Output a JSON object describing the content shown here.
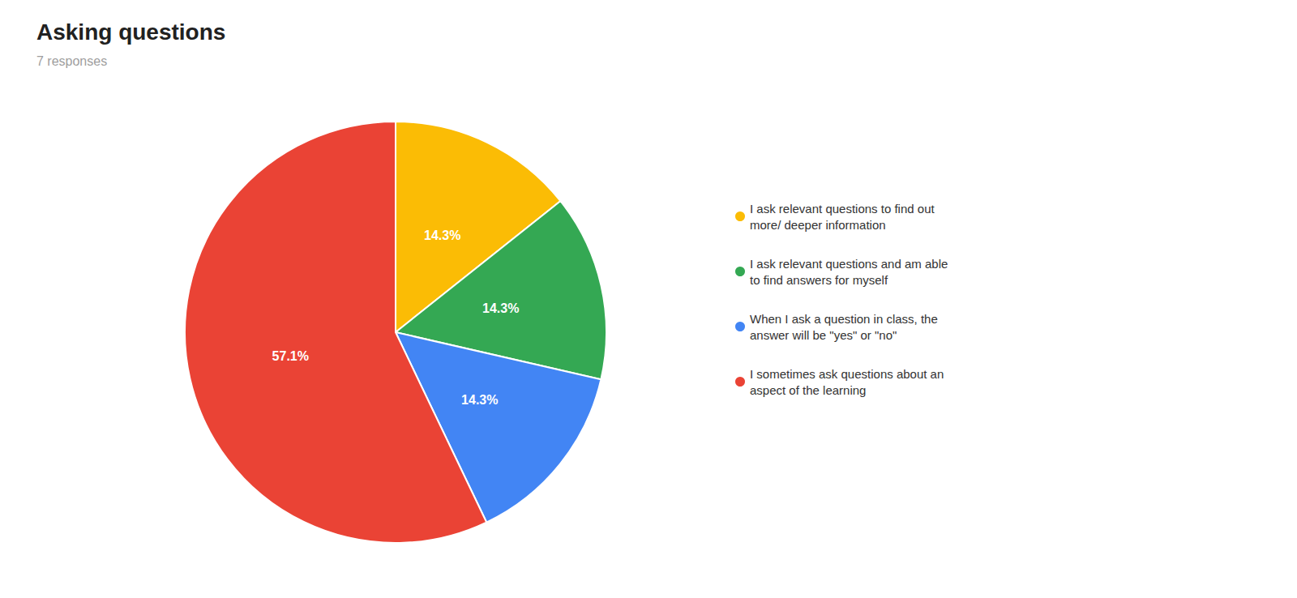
{
  "chart_data": {
    "type": "pie",
    "title": "Asking questions",
    "subtitle": "7 responses",
    "categories": [
      "I ask relevant questions to find out\nmore/ deeper information",
      "I ask relevant questions and am able\nto find answers for myself",
      "When I ask a question in class, the\nanswer will be \"yes\" or \"no\"",
      "I sometimes ask questions about an\naspect of the learning"
    ],
    "values": [
      14.3,
      14.3,
      14.3,
      57.1
    ],
    "value_labels": [
      "14.3%",
      "14.3%",
      "14.3%",
      "57.1%"
    ],
    "colors": [
      "#FBBC05",
      "#34A853",
      "#4285F4",
      "#EA4335"
    ],
    "data_labels": true,
    "legend": "right"
  }
}
